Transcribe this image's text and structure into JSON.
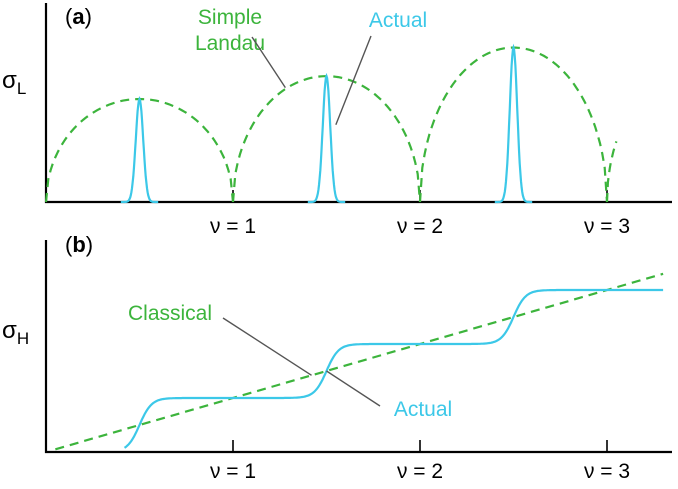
{
  "colors": {
    "theory": "#3cb43c",
    "actual": "#3cc8e8",
    "axis": "#000000",
    "leader": "#555555"
  },
  "chart_data": [
    {
      "type": "line",
      "panel_label": "a",
      "ylabel": "σ",
      "ylabel_sub": "L",
      "x_ticks": [
        {
          "value": 1,
          "label": "ν = 1"
        },
        {
          "value": 2,
          "label": "ν = 2"
        },
        {
          "value": 3,
          "label": "ν = 3"
        }
      ],
      "xlim": [
        0,
        3.3
      ],
      "ylim": [
        0,
        1.2
      ],
      "series": [
        {
          "name": "Simple Landau",
          "style": "dashed",
          "color": "#3cb43c",
          "arches": [
            {
              "from": 0,
              "to": 1,
              "peak": 0.72
            },
            {
              "from": 1,
              "to": 2,
              "peak": 0.88
            },
            {
              "from": 2,
              "to": 3,
              "peak": 1.08
            }
          ],
          "tail": {
            "from": 3,
            "to": 3.05
          }
        },
        {
          "name": "Actual",
          "style": "solid",
          "color": "#3cc8e8",
          "peaks": [
            {
              "x": 0.5,
              "height": 0.72
            },
            {
              "x": 1.5,
              "height": 0.88
            },
            {
              "x": 2.5,
              "height": 1.08
            }
          ],
          "peak_width": 0.02
        }
      ],
      "annotations": [
        {
          "text": [
            "Simple",
            "Landau"
          ],
          "points_to": {
            "x": 1.28,
            "y": 0.8
          }
        },
        {
          "text": [
            "Actual"
          ],
          "points_to": {
            "x": 1.55,
            "y": 0.54
          }
        }
      ]
    },
    {
      "type": "line",
      "panel_label": "b",
      "ylabel": "σ",
      "ylabel_sub": "H",
      "x_ticks": [
        {
          "value": 1,
          "label": "ν = 1"
        },
        {
          "value": 2,
          "label": "ν = 2"
        },
        {
          "value": 3,
          "label": "ν = 3"
        }
      ],
      "xlim": [
        0,
        3.3
      ],
      "ylim": [
        0,
        3.6
      ],
      "series": [
        {
          "name": "Classical",
          "style": "dashed",
          "color": "#3cb43c",
          "line": {
            "x0": 0.05,
            "y0": 0.05,
            "x1": 3.3,
            "y1": 3.3
          }
        },
        {
          "name": "Actual",
          "style": "solid",
          "color": "#3cc8e8",
          "plateaus": [
            0,
            1,
            2,
            3
          ],
          "steps_at": [
            0.5,
            1.5,
            2.5
          ],
          "step_width": 0.055,
          "x_end": 3.3
        }
      ],
      "annotations": [
        {
          "text": [
            "Classical"
          ],
          "points_to": {
            "x": 1.42,
            "y": 1.42
          }
        },
        {
          "text": [
            "Actual"
          ],
          "points_to": {
            "x": 1.5,
            "y": 1.5
          }
        }
      ]
    }
  ]
}
